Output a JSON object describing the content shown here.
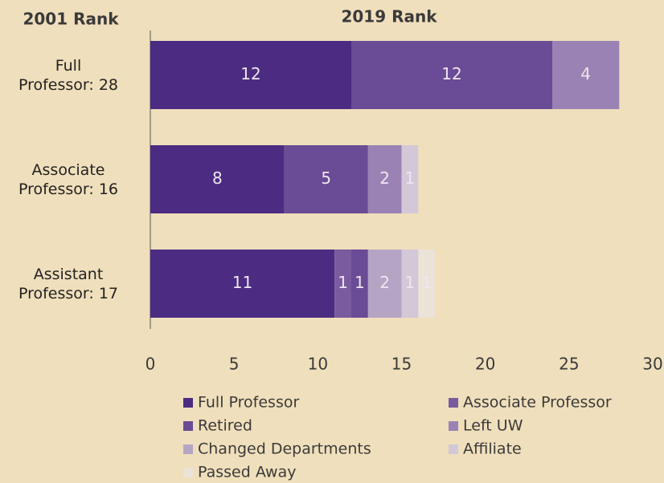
{
  "chart_data": {
    "type": "stacked-barh",
    "title": "2019 Rank",
    "y_label": "2001 Rank",
    "categories": [
      "Full\nProfessor: 28",
      "Associate\nProfessor: 16",
      "Assistant\nProfessor: 17"
    ],
    "series": [
      {
        "name": "Full Professor",
        "color": "#4b2c82",
        "values": [
          12,
          8,
          11
        ]
      },
      {
        "name": "Associate Professor",
        "color": "#7a5ba0",
        "values": [
          0,
          0,
          1
        ]
      },
      {
        "name": "Retired",
        "color": "#6a4b95",
        "values": [
          12,
          5,
          1
        ]
      },
      {
        "name": "Left UW",
        "color": "#9a83b4",
        "values": [
          4,
          2,
          0
        ]
      },
      {
        "name": "Changed Departments",
        "color": "#b6a4c5",
        "values": [
          0,
          0,
          2
        ]
      },
      {
        "name": "Affiliate",
        "color": "#d3c8d8",
        "values": [
          0,
          1,
          1
        ]
      },
      {
        "name": "Passed Away",
        "color": "#ece3d8",
        "values": [
          0,
          0,
          1
        ]
      }
    ],
    "xlim": [
      0,
      30
    ],
    "xticks": [
      0,
      5,
      10,
      15,
      20,
      25,
      30
    ],
    "grid": false,
    "legend": "bottom"
  }
}
